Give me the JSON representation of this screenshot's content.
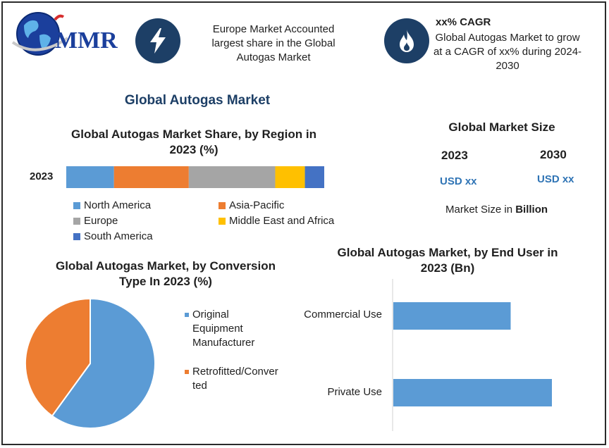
{
  "logo": {
    "text": "MMR",
    "icon": "globe-icon"
  },
  "info_boxes": [
    {
      "icon": "lightning-icon",
      "text": "Europe Market Accounted largest share in the Global Autogas Market"
    },
    {
      "icon": "flame-icon",
      "title": "xx% CAGR",
      "text": "Global Autogas Market to grow at a CAGR of xx% during 2024-2030"
    }
  ],
  "main_title": "Global Autogas Market",
  "market_size": {
    "title": "Global Market Size",
    "years": [
      "2023",
      "2030"
    ],
    "values": [
      "USD xx",
      "USD xx"
    ],
    "unit_prefix": "Market Size in ",
    "unit_bold": "Billion"
  },
  "chart_data": [
    {
      "type": "bar",
      "orientation": "horizontal-stacked",
      "title": "Global Autogas Market Share, by Region in 2023 (%)",
      "categories": [
        "2023"
      ],
      "series": [
        {
          "name": "North America",
          "values": [
            18.5
          ],
          "color": "#5b9bd5"
        },
        {
          "name": "Asia-Pacific",
          "values": [
            29
          ],
          "color": "#ed7d31"
        },
        {
          "name": "Europe",
          "values": [
            33.5
          ],
          "color": "#a5a5a5"
        },
        {
          "name": "Middle East and Africa",
          "values": [
            11.5
          ],
          "color": "#ffc000"
        },
        {
          "name": "South America",
          "values": [
            7.5
          ],
          "color": "#4472c4"
        }
      ],
      "xlim": [
        0,
        100
      ],
      "legend": "bottom"
    },
    {
      "type": "pie",
      "title": "Global Autogas Market, by Conversion Type In 2023 (%)",
      "labels": [
        "Original Equipment Manufacturer",
        "Retrofitted/Converted"
      ],
      "label_lines": [
        [
          "Original",
          "Equipment",
          "Manufacturer"
        ],
        [
          "Retrofitted/Conver",
          "ted"
        ]
      ],
      "values": [
        60,
        40
      ],
      "colors": [
        "#5b9bd5",
        "#ed7d31"
      ],
      "legend": "right"
    },
    {
      "type": "bar",
      "orientation": "horizontal",
      "title": "Global Autogas Market, by End User in 2023 (Bn)",
      "categories": [
        "Commercial Use",
        "Private Use"
      ],
      "values": [
        7.4,
        10
      ],
      "xlim": [
        0,
        12
      ],
      "color": "#5b9bd5",
      "grid": false,
      "legend": "none"
    }
  ]
}
